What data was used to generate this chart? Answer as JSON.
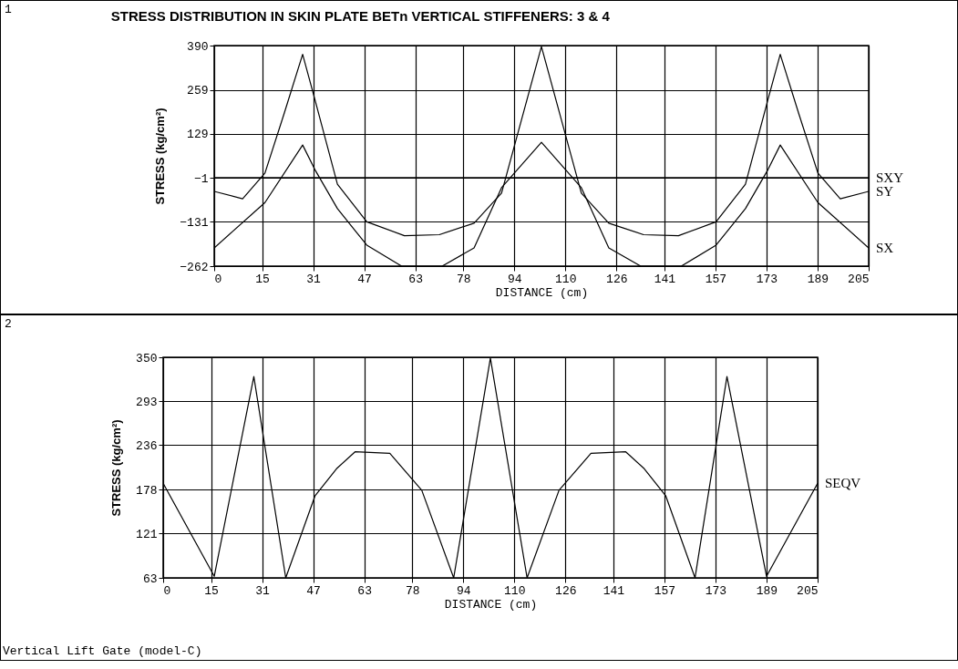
{
  "chart_data": [
    {
      "type": "line",
      "title": "STRESS DISTRIBUTION IN SKIN PLATE BETn VERTICAL STIFFENERS: 3 & 4",
      "xlabel": "DISTANCE (cm)",
      "ylabel": "STRESS (kg/cm²)",
      "annotations": [
        "1"
      ],
      "xlim": [
        0,
        205
      ],
      "xticks": [
        0,
        15,
        31,
        47,
        63,
        78,
        94,
        110,
        126,
        141,
        157,
        173,
        189,
        205
      ],
      "ylim": [
        -262,
        390
      ],
      "yticks": [
        -262,
        -131,
        -1,
        129,
        259,
        390
      ],
      "grid": true,
      "legend": false,
      "series": [
        {
          "name": "SXY",
          "color": "#000000",
          "x": [
            0,
            205
          ],
          "values": [
            0,
            0
          ]
        },
        {
          "name": "SY",
          "color": "#000000",
          "x": [
            0,
            8.9,
            15.9,
            21.8,
            27.7,
            31.5,
            38.6,
            47.8,
            59.6,
            70.5,
            81.4,
            90,
            102.5,
            115,
            123.6,
            134.5,
            145.4,
            157.2,
            166.4,
            173.5,
            177.3,
            183.2,
            189.1,
            196.1,
            205
          ],
          "values": [
            -41,
            -63,
            13,
            186,
            364,
            232,
            -20,
            -131,
            -172,
            -169,
            -135,
            -46,
            387,
            -46,
            -135,
            -169,
            -172,
            -131,
            -20,
            232,
            364,
            186,
            13,
            -63,
            -41
          ]
        },
        {
          "name": "SX",
          "color": "#000000",
          "x": [
            0,
            15.9,
            27.7,
            31.5,
            38.6,
            47.8,
            58.7,
            71.4,
            81.4,
            90,
            102.5,
            115,
            123.6,
            133.6,
            146.3,
            157.2,
            166.4,
            173.5,
            177.3,
            189.1,
            205
          ],
          "values": [
            -208,
            -74,
            96,
            24,
            -92,
            -200,
            -262,
            -262,
            -208,
            -30,
            104,
            -30,
            -208,
            -262,
            -262,
            -200,
            -92,
            24,
            96,
            -74,
            -208
          ]
        }
      ]
    },
    {
      "type": "line",
      "xlabel": "DISTANCE (cm)",
      "ylabel": "STRESS (kg/cm²)",
      "annotations": [
        "2",
        "Vertical Lift Gate (model-C)"
      ],
      "xlim": [
        0,
        205
      ],
      "xticks": [
        0,
        15,
        31,
        47,
        63,
        78,
        94,
        110,
        126,
        141,
        157,
        173,
        189,
        205
      ],
      "ylim": [
        63,
        350
      ],
      "yticks": [
        63,
        121,
        178,
        236,
        293,
        350
      ],
      "grid": true,
      "legend": false,
      "series": [
        {
          "name": "SEQV",
          "color": "#000000",
          "x": [
            0,
            16,
            28.4,
            38.4,
            47.6,
            54.3,
            60.1,
            71,
            81,
            91,
            102.5,
            114,
            124,
            134,
            144.9,
            150.7,
            157.4,
            166.6,
            176.6,
            189,
            205
          ],
          "values": [
            186,
            65,
            325,
            63,
            170,
            205,
            227,
            225,
            177,
            63,
            349,
            63,
            177,
            225,
            227,
            205,
            170,
            63,
            325,
            65,
            186
          ]
        }
      ]
    }
  ]
}
